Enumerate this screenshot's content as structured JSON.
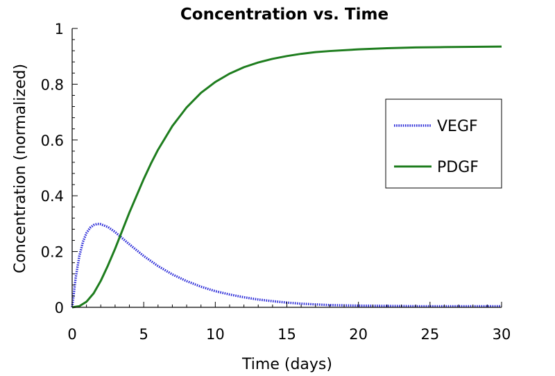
{
  "chart_data": {
    "type": "line",
    "title": "Concentration vs. Time",
    "xlabel": "Time (days)",
    "ylabel": "Concentration (normalized)",
    "xlim": [
      0,
      30
    ],
    "ylim": [
      0,
      1
    ],
    "x_ticks": [
      "0",
      "5",
      "10",
      "15",
      "20",
      "25",
      "30"
    ],
    "y_ticks": [
      "0",
      "0.2",
      "0.4",
      "0.6",
      "0.8",
      "1"
    ],
    "grid": false,
    "legend_position": "right",
    "series": [
      {
        "name": "VEGF",
        "color": "#2a2ad8",
        "style": "dotted",
        "x": [
          0,
          0.25,
          0.5,
          0.75,
          1,
          1.25,
          1.5,
          1.75,
          2,
          2.5,
          3,
          3.5,
          4,
          5,
          6,
          7,
          8,
          9,
          10,
          11,
          12,
          13,
          14,
          15,
          16,
          18,
          20,
          22,
          24,
          26,
          28,
          30
        ],
        "y": [
          0,
          0.107,
          0.183,
          0.234,
          0.266,
          0.285,
          0.295,
          0.299,
          0.298,
          0.288,
          0.27,
          0.248,
          0.226,
          0.184,
          0.148,
          0.118,
          0.094,
          0.074,
          0.058,
          0.046,
          0.036,
          0.028,
          0.022,
          0.017,
          0.013,
          0.008,
          0.006,
          0.005,
          0.004,
          0.004,
          0.004,
          0.004
        ]
      },
      {
        "name": "PDGF",
        "color": "#1e7d1e",
        "style": "solid",
        "x": [
          0,
          0.5,
          1,
          1.5,
          2,
          2.5,
          3,
          3.5,
          4,
          4.5,
          5,
          5.5,
          6,
          7,
          8,
          9,
          10,
          11,
          12,
          13,
          14,
          15,
          16,
          17,
          18,
          20,
          22,
          24,
          26,
          28,
          30
        ],
        "y": [
          0,
          0.004,
          0.02,
          0.05,
          0.095,
          0.15,
          0.21,
          0.275,
          0.34,
          0.4,
          0.46,
          0.515,
          0.565,
          0.65,
          0.717,
          0.769,
          0.808,
          0.838,
          0.861,
          0.878,
          0.891,
          0.901,
          0.909,
          0.915,
          0.919,
          0.925,
          0.929,
          0.932,
          0.933,
          0.934,
          0.935
        ]
      }
    ]
  }
}
